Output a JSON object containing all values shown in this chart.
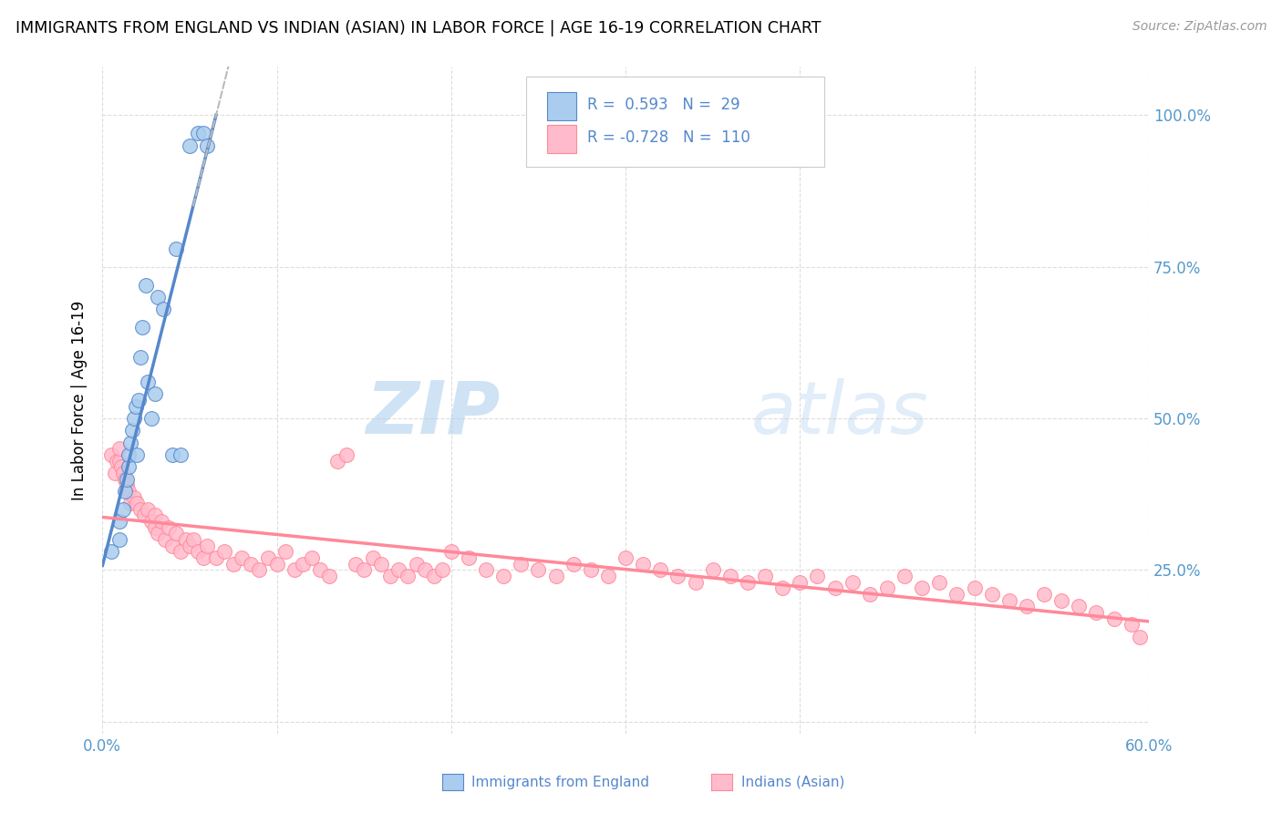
{
  "title": "IMMIGRANTS FROM ENGLAND VS INDIAN (ASIAN) IN LABOR FORCE | AGE 16-19 CORRELATION CHART",
  "source": "Source: ZipAtlas.com",
  "ylabel": "In Labor Force | Age 16-19",
  "blue_color": "#5588CC",
  "pink_color": "#FF8899",
  "blue_fill": "#AACCEE",
  "pink_fill": "#FFBBCC",
  "watermark_zip": "ZIP",
  "watermark_atlas": "atlas",
  "legend_label1": "Immigrants from England",
  "legend_label2": "Indians (Asian)",
  "england_x": [
    0.5,
    1.0,
    1.0,
    1.2,
    1.3,
    1.4,
    1.5,
    1.5,
    1.6,
    1.7,
    1.8,
    1.9,
    2.0,
    2.1,
    2.2,
    2.3,
    2.5,
    2.6,
    2.8,
    3.0,
    3.2,
    3.5,
    4.0,
    4.2,
    4.5,
    5.0,
    5.5,
    5.8,
    6.0
  ],
  "england_y": [
    0.28,
    0.3,
    0.33,
    0.35,
    0.38,
    0.4,
    0.42,
    0.44,
    0.46,
    0.48,
    0.5,
    0.52,
    0.44,
    0.53,
    0.6,
    0.65,
    0.72,
    0.56,
    0.5,
    0.54,
    0.7,
    0.68,
    0.44,
    0.78,
    0.44,
    0.95,
    0.97,
    0.97,
    0.95
  ],
  "indian_x": [
    0.5,
    0.7,
    0.8,
    1.0,
    1.0,
    1.1,
    1.2,
    1.3,
    1.4,
    1.5,
    1.6,
    1.8,
    2.0,
    2.2,
    2.4,
    2.6,
    2.8,
    3.0,
    3.0,
    3.2,
    3.4,
    3.6,
    3.8,
    4.0,
    4.2,
    4.5,
    4.8,
    5.0,
    5.2,
    5.5,
    5.8,
    6.0,
    6.5,
    7.0,
    7.5,
    8.0,
    8.5,
    9.0,
    9.5,
    10.0,
    10.5,
    11.0,
    11.5,
    12.0,
    12.5,
    13.0,
    13.5,
    14.0,
    14.5,
    15.0,
    15.5,
    16.0,
    16.5,
    17.0,
    17.5,
    18.0,
    18.5,
    19.0,
    19.5,
    20.0,
    21.0,
    22.0,
    23.0,
    24.0,
    25.0,
    26.0,
    27.0,
    28.0,
    29.0,
    30.0,
    31.0,
    32.0,
    33.0,
    34.0,
    35.0,
    36.0,
    37.0,
    38.0,
    39.0,
    40.0,
    41.0,
    42.0,
    43.0,
    44.0,
    45.0,
    46.0,
    47.0,
    48.0,
    49.0,
    50.0,
    51.0,
    52.0,
    53.0,
    54.0,
    55.0,
    56.0,
    57.0,
    58.0,
    59.0,
    59.5
  ],
  "indian_y": [
    0.44,
    0.41,
    0.43,
    0.43,
    0.45,
    0.42,
    0.41,
    0.4,
    0.39,
    0.38,
    0.36,
    0.37,
    0.36,
    0.35,
    0.34,
    0.35,
    0.33,
    0.32,
    0.34,
    0.31,
    0.33,
    0.3,
    0.32,
    0.29,
    0.31,
    0.28,
    0.3,
    0.29,
    0.3,
    0.28,
    0.27,
    0.29,
    0.27,
    0.28,
    0.26,
    0.27,
    0.26,
    0.25,
    0.27,
    0.26,
    0.28,
    0.25,
    0.26,
    0.27,
    0.25,
    0.24,
    0.43,
    0.44,
    0.26,
    0.25,
    0.27,
    0.26,
    0.24,
    0.25,
    0.24,
    0.26,
    0.25,
    0.24,
    0.25,
    0.28,
    0.27,
    0.25,
    0.24,
    0.26,
    0.25,
    0.24,
    0.26,
    0.25,
    0.24,
    0.27,
    0.26,
    0.25,
    0.24,
    0.23,
    0.25,
    0.24,
    0.23,
    0.24,
    0.22,
    0.23,
    0.24,
    0.22,
    0.23,
    0.21,
    0.22,
    0.24,
    0.22,
    0.23,
    0.21,
    0.22,
    0.21,
    0.2,
    0.19,
    0.21,
    0.2,
    0.19,
    0.18,
    0.17,
    0.16,
    0.14
  ],
  "xlim": [
    0.0,
    60.0
  ],
  "ylim": [
    -0.02,
    1.08
  ],
  "xtick_positions": [
    0.0,
    10.0,
    20.0,
    30.0,
    40.0,
    50.0,
    60.0
  ],
  "xtick_labels": [
    "0.0%",
    "",
    "",
    "",
    "",
    "",
    "60.0%"
  ],
  "ytick_positions": [
    0.0,
    0.25,
    0.5,
    0.75,
    1.0
  ],
  "ytick_labels_right": [
    "",
    "25.0%",
    "50.0%",
    "75.0%",
    "100.0%"
  ]
}
